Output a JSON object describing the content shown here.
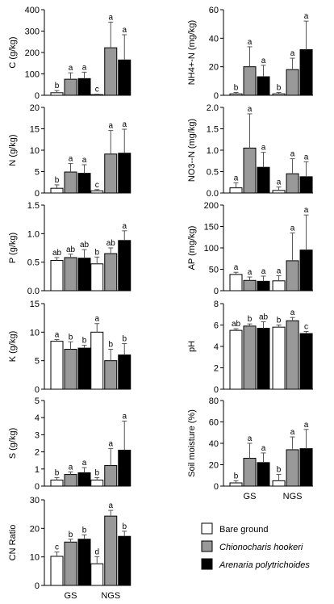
{
  "legend": {
    "entries": [
      {
        "label": "Bare ground",
        "color": "#ffffff",
        "italic": false
      },
      {
        "label": "Chionocharis hookeri",
        "color": "#999999",
        "italic": true
      },
      {
        "label": "Arenaria polytrichoides",
        "color": "#000000",
        "italic": true
      }
    ]
  },
  "chart_data": [
    {
      "id": "C",
      "type": "bar",
      "ylabel": "C (g/kg)",
      "ylim": [
        0,
        400
      ],
      "yticks": [
        "0",
        "100",
        "200",
        "300",
        "400"
      ],
      "categories": [
        "GS",
        "NGS"
      ],
      "show_xticks": false,
      "series": [
        {
          "name": "Bare ground",
          "values": [
            12,
            3
          ],
          "errors": [
            10,
            2
          ],
          "letters": [
            "b",
            "c"
          ]
        },
        {
          "name": "Chionocharis hookeri",
          "values": [
            75,
            222
          ],
          "errors": [
            30,
            120
          ],
          "letters": [
            "a",
            "a"
          ]
        },
        {
          "name": "Arenaria polytrichoides",
          "values": [
            78,
            165
          ],
          "errors": [
            30,
            118
          ],
          "letters": [
            "a",
            "a"
          ]
        }
      ]
    },
    {
      "id": "NH4",
      "type": "bar",
      "ylabel": "NH4+-N (mg/kg)",
      "ylim": [
        0,
        60
      ],
      "yticks": [
        "0",
        "20",
        "40",
        "60"
      ],
      "categories": [
        "GS",
        "NGS"
      ],
      "show_xticks": false,
      "series": [
        {
          "name": "Bare ground",
          "values": [
            1,
            1
          ],
          "errors": [
            1,
            1
          ],
          "letters": [
            "b",
            "b"
          ]
        },
        {
          "name": "Chionocharis hookeri",
          "values": [
            20,
            18
          ],
          "errors": [
            14,
            8
          ],
          "letters": [
            "a",
            "a"
          ]
        },
        {
          "name": "Arenaria polytrichoides",
          "values": [
            13,
            32
          ],
          "errors": [
            8,
            20
          ],
          "letters": [
            "a",
            "a"
          ]
        }
      ]
    },
    {
      "id": "N",
      "type": "bar",
      "ylabel": "N (g/kg)",
      "ylim": [
        0,
        20
      ],
      "yticks": [
        "0",
        "5",
        "10",
        "15",
        "20"
      ],
      "categories": [
        "GS",
        "NGS"
      ],
      "show_xticks": false,
      "series": [
        {
          "name": "Bare ground",
          "values": [
            1.1,
            0.5
          ],
          "errors": [
            0.8,
            0.3
          ],
          "letters": [
            "b",
            "c"
          ]
        },
        {
          "name": "Chionocharis hookeri",
          "values": [
            4.9,
            9.1
          ],
          "errors": [
            2,
            5.5
          ],
          "letters": [
            "a",
            "a"
          ]
        },
        {
          "name": "Arenaria polytrichoides",
          "values": [
            4.6,
            9.3
          ],
          "errors": [
            2,
            5.6
          ],
          "letters": [
            "a",
            "a"
          ]
        }
      ]
    },
    {
      "id": "NO3",
      "type": "bar",
      "ylabel": "NO3--N (mg/kg)",
      "ylim": [
        0,
        2.0
      ],
      "yticks": [
        "0.0",
        "0.5",
        "1.0",
        "1.5",
        "2.0"
      ],
      "categories": [
        "GS",
        "NGS"
      ],
      "show_xticks": false,
      "series": [
        {
          "name": "Bare ground",
          "values": [
            0.12,
            0.06
          ],
          "errors": [
            0.12,
            0.08
          ],
          "letters": [
            "a",
            "a"
          ]
        },
        {
          "name": "Chionocharis hookeri",
          "values": [
            1.05,
            0.45
          ],
          "errors": [
            0.8,
            0.35
          ],
          "letters": [
            "a",
            "a"
          ]
        },
        {
          "name": "Arenaria polytrichoides",
          "values": [
            0.6,
            0.38
          ],
          "errors": [
            0.35,
            0.35
          ],
          "letters": [
            "a",
            "a"
          ]
        }
      ]
    },
    {
      "id": "P",
      "type": "bar",
      "ylabel": "P (g/kg)",
      "ylim": [
        0,
        1.5
      ],
      "yticks": [
        "0.0",
        "0.5",
        "1.0",
        "1.5"
      ],
      "categories": [
        "GS",
        "NGS"
      ],
      "show_xticks": false,
      "series": [
        {
          "name": "Bare ground",
          "values": [
            0.53,
            0.47
          ],
          "errors": [
            0.05,
            0.12
          ],
          "letters": [
            "ab",
            "b"
          ]
        },
        {
          "name": "Chionocharis hookeri",
          "values": [
            0.58,
            0.65
          ],
          "errors": [
            0.06,
            0.1
          ],
          "letters": [
            "ab",
            "ab"
          ]
        },
        {
          "name": "Arenaria polytrichoides",
          "values": [
            0.57,
            0.88
          ],
          "errors": [
            0.15,
            0.17
          ],
          "letters": [
            "ab",
            "a"
          ]
        }
      ]
    },
    {
      "id": "AP",
      "type": "bar",
      "ylabel": "AP (mg/kg)",
      "ylim": [
        0,
        200
      ],
      "yticks": [
        "0",
        "50",
        "100",
        "150",
        "200"
      ],
      "categories": [
        "GS",
        "NGS"
      ],
      "show_xticks": false,
      "series": [
        {
          "name": "Bare ground",
          "values": [
            38,
            23
          ],
          "errors": [
            5,
            12
          ],
          "letters": [
            "a",
            "a"
          ]
        },
        {
          "name": "Chionocharis hookeri",
          "values": [
            24,
            70
          ],
          "errors": [
            8,
            65
          ],
          "letters": [
            "a",
            "a"
          ]
        },
        {
          "name": "Arenaria polytrichoides",
          "values": [
            22,
            95
          ],
          "errors": [
            12,
            82
          ],
          "letters": [
            "a",
            "a"
          ]
        }
      ]
    },
    {
      "id": "K",
      "type": "bar",
      "ylabel": "K (g/kg)",
      "ylim": [
        0,
        15
      ],
      "yticks": [
        "0",
        "5",
        "10",
        "15"
      ],
      "categories": [
        "GS",
        "NGS"
      ],
      "show_xticks": false,
      "series": [
        {
          "name": "Bare ground",
          "values": [
            8.4,
            10.0
          ],
          "errors": [
            0.3,
            1.5
          ],
          "letters": [
            "a",
            "a"
          ]
        },
        {
          "name": "Chionocharis hookeri",
          "values": [
            7.0,
            5.0
          ],
          "errors": [
            1.3,
            2.0
          ],
          "letters": [
            "b",
            "b"
          ]
        },
        {
          "name": "Arenaria polytrichoides",
          "values": [
            7.2,
            6.0
          ],
          "errors": [
            0.5,
            2.0
          ],
          "letters": [
            "b",
            "b"
          ]
        }
      ]
    },
    {
      "id": "pH",
      "type": "bar",
      "ylabel": "pH",
      "ylim": [
        0,
        8
      ],
      "yticks": [
        "0",
        "2",
        "4",
        "6",
        "8"
      ],
      "categories": [
        "GS",
        "NGS"
      ],
      "show_xticks": false,
      "series": [
        {
          "name": "Bare ground",
          "values": [
            5.5,
            5.8
          ],
          "errors": [
            0.15,
            0.2
          ],
          "letters": [
            "ab",
            "b"
          ]
        },
        {
          "name": "Chionocharis hookeri",
          "values": [
            5.9,
            6.4
          ],
          "errors": [
            0.2,
            0.3
          ],
          "letters": [
            "b",
            "a"
          ]
        },
        {
          "name": "Arenaria polytrichoides",
          "values": [
            5.7,
            5.2
          ],
          "errors": [
            0.6,
            0.2
          ],
          "letters": [
            "ab",
            "c"
          ]
        }
      ]
    },
    {
      "id": "S",
      "type": "bar",
      "ylabel": "S (g/kg)",
      "ylim": [
        0,
        5
      ],
      "yticks": [
        "0",
        "1",
        "2",
        "3",
        "4",
        "5"
      ],
      "categories": [
        "GS",
        "NGS"
      ],
      "show_xticks": false,
      "series": [
        {
          "name": "Bare ground",
          "values": [
            0.35,
            0.35
          ],
          "errors": [
            0.15,
            0.15
          ],
          "letters": [
            "b",
            "b"
          ]
        },
        {
          "name": "Chionocharis hookeri",
          "values": [
            0.68,
            1.2
          ],
          "errors": [
            0.15,
            1.0
          ],
          "letters": [
            "a",
            "a"
          ]
        },
        {
          "name": "Arenaria polytrichoides",
          "values": [
            0.78,
            2.1
          ],
          "errors": [
            0.3,
            1.7
          ],
          "letters": [
            "a",
            "a"
          ]
        }
      ]
    },
    {
      "id": "SM",
      "type": "bar",
      "ylabel": "Soil moisture (%)",
      "ylim": [
        0,
        80
      ],
      "yticks": [
        "0",
        "20",
        "40",
        "60",
        "80"
      ],
      "categories": [
        "GS",
        "NGS"
      ],
      "show_xticks": true,
      "series": [
        {
          "name": "Bare ground",
          "values": [
            3,
            5
          ],
          "errors": [
            2,
            6
          ],
          "letters": [
            "b",
            "b"
          ]
        },
        {
          "name": "Chionocharis hookeri",
          "values": [
            26,
            34
          ],
          "errors": [
            14,
            12
          ],
          "letters": [
            "a",
            "a"
          ]
        },
        {
          "name": "Arenaria polytrichoides",
          "values": [
            22,
            35
          ],
          "errors": [
            9,
            18
          ],
          "letters": [
            "a",
            "a"
          ]
        }
      ]
    },
    {
      "id": "CN",
      "type": "bar",
      "ylabel": "CN Ratio",
      "ylim": [
        0,
        30
      ],
      "yticks": [
        "0",
        "10",
        "20",
        "30"
      ],
      "categories": [
        "GS",
        "NGS"
      ],
      "show_xticks": true,
      "series": [
        {
          "name": "Bare ground",
          "values": [
            10.2,
            7.6
          ],
          "errors": [
            1.5,
            2.5
          ],
          "letters": [
            "c",
            "d"
          ]
        },
        {
          "name": "Chionocharis hookeri",
          "values": [
            15.2,
            24.3
          ],
          "errors": [
            1.0,
            2.0
          ],
          "letters": [
            "b",
            "a"
          ]
        },
        {
          "name": "Arenaria polytrichoides",
          "values": [
            16.2,
            17.2
          ],
          "errors": [
            1.5,
            1.8
          ],
          "letters": [
            "b",
            "b"
          ]
        }
      ]
    }
  ]
}
